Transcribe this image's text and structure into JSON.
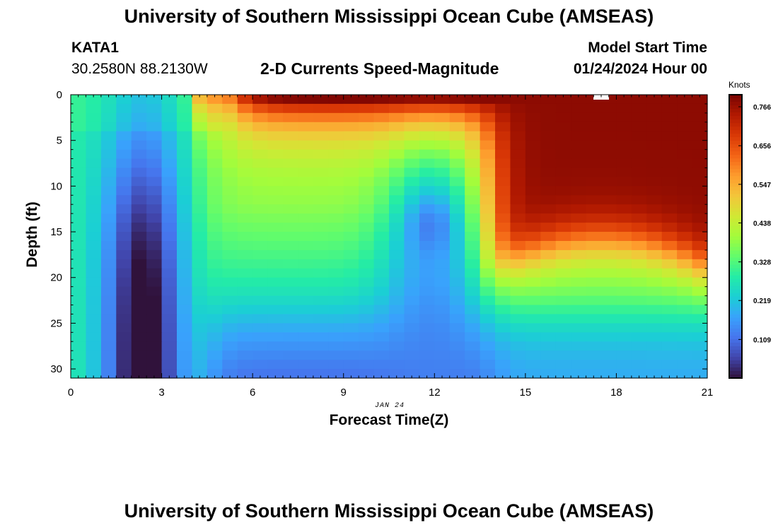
{
  "header": {
    "title": "University of Southern Mississippi Ocean Cube (AMSEAS)",
    "station": "KATA1",
    "coordinates": "30.2580N  88.2130W",
    "subtitle": "2-D Currents Speed-Magnitude",
    "model_start_label": "Model Start Time",
    "model_start_value": "01/24/2024 Hour 00"
  },
  "footer": {
    "title": "University of Southern Mississippi Ocean Cube (AMSEAS)"
  },
  "chart_data": {
    "type": "heatmap",
    "title": "2-D Currents Speed-Magnitude",
    "xlabel": "Forecast Time(Z)",
    "ylabel": "Depth (ft)",
    "date_label": "JAN 24",
    "xlim": [
      0,
      21
    ],
    "ylim": [
      0,
      31
    ],
    "x_ticks": [
      0,
      3,
      6,
      9,
      12,
      15,
      18,
      21
    ],
    "y_ticks": [
      0,
      5,
      10,
      15,
      20,
      25,
      30
    ],
    "colorbar": {
      "units": "Knots",
      "range": [
        0,
        0.8
      ],
      "ticks": [
        "0.766",
        "0.656",
        "0.547",
        "0.438",
        "0.328",
        "0.219",
        "0.109"
      ],
      "colors": [
        "#30123b",
        "#4145ab",
        "#4675ed",
        "#39a2fc",
        "#1bcfd4",
        "#24eca6",
        "#61fc6c",
        "#a4fc3b",
        "#d1e834",
        "#f3c63a",
        "#fe9b2d",
        "#f36315",
        "#d93806",
        "#b11901",
        "#7a0402"
      ]
    },
    "speed_fields": {
      "comment": "approximate current speed (knots) as sum of features over hour h and depth d (ft)",
      "base": 0.26,
      "features": [
        {
          "name": "surface-jet-east",
          "hour_range": [
            4.3,
            21
          ],
          "depth_range": [
            0,
            5
          ],
          "peak": 0.73
        },
        {
          "name": "deep-slow-core",
          "center_hour": 2.5,
          "center_depth": 27,
          "peak": 0.02
        },
        {
          "name": "mid-slow-core",
          "center_hour": 12,
          "center_depth": 14.5,
          "peak": 0.12
        },
        {
          "name": "eastern-fast-bowl",
          "hour_range": [
            14,
            21
          ],
          "depth_range": [
            0,
            17
          ],
          "peak": 0.79
        }
      ]
    }
  }
}
